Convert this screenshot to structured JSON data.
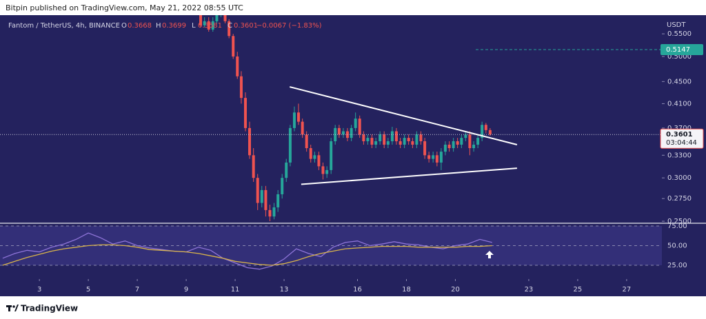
{
  "header": "Bitpin published on TradingView.com, May 21, 2022 08:55 UTC",
  "footer": "TradingView",
  "chart_data": [
    {
      "type": "candlestick",
      "title": "Fantom / TetherUS, 4h, BINANCE",
      "ohlc_labels": [
        "O",
        "H",
        "L",
        "C"
      ],
      "change_label": "−0.0067 (−1.83%)",
      "y_axis_label": "USDT",
      "countdown": "03:04:44",
      "log_scale": true,
      "grid": false,
      "up_color": "#26a69a",
      "down_color": "#ef5350",
      "x": [
        9.59,
        9.75,
        9.92,
        10.09,
        10.25,
        10.42,
        10.59,
        10.75,
        10.92,
        11.09,
        11.25,
        11.42,
        11.59,
        11.75,
        11.92,
        12.09,
        12.25,
        12.42,
        12.59,
        12.75,
        12.92,
        13.09,
        13.25,
        13.42,
        13.59,
        13.75,
        13.92,
        14.09,
        14.25,
        14.42,
        14.59,
        14.75,
        14.92,
        15.09,
        15.25,
        15.42,
        15.59,
        15.75,
        15.92,
        16.09,
        16.25,
        16.42,
        16.59,
        16.75,
        16.92,
        17.09,
        17.25,
        17.42,
        17.59,
        17.75,
        17.92,
        18.09,
        18.25,
        18.42,
        18.59,
        18.75,
        18.92,
        19.09,
        19.25,
        19.42,
        19.59,
        19.75,
        19.92,
        20.09,
        20.25,
        20.42,
        20.59,
        20.75,
        20.92,
        21.09,
        21.25,
        21.42
      ],
      "open": [
        0.6,
        0.57,
        0.58,
        0.56,
        0.58,
        0.595,
        0.6,
        0.58,
        0.545,
        0.5,
        0.46,
        0.42,
        0.37,
        0.33,
        0.3,
        0.27,
        0.285,
        0.262,
        0.255,
        0.265,
        0.28,
        0.3,
        0.32,
        0.37,
        0.395,
        0.38,
        0.36,
        0.34,
        0.325,
        0.33,
        0.315,
        0.305,
        0.31,
        0.35,
        0.37,
        0.36,
        0.365,
        0.355,
        0.37,
        0.385,
        0.36,
        0.35,
        0.355,
        0.345,
        0.35,
        0.36,
        0.345,
        0.35,
        0.365,
        0.35,
        0.345,
        0.355,
        0.35,
        0.345,
        0.36,
        0.35,
        0.33,
        0.325,
        0.33,
        0.32,
        0.335,
        0.345,
        0.34,
        0.35,
        0.345,
        0.355,
        0.36,
        0.34,
        0.345,
        0.355,
        0.375,
        0.3668
      ],
      "high": [
        0.607,
        0.59,
        0.59,
        0.59,
        0.6,
        0.607,
        0.605,
        0.585,
        0.55,
        0.51,
        0.47,
        0.43,
        0.38,
        0.34,
        0.305,
        0.29,
        0.29,
        0.268,
        0.27,
        0.285,
        0.305,
        0.325,
        0.375,
        0.405,
        0.41,
        0.385,
        0.365,
        0.345,
        0.335,
        0.335,
        0.32,
        0.315,
        0.355,
        0.375,
        0.375,
        0.37,
        0.37,
        0.375,
        0.395,
        0.39,
        0.365,
        0.36,
        0.36,
        0.355,
        0.365,
        0.365,
        0.355,
        0.372,
        0.37,
        0.355,
        0.36,
        0.36,
        0.355,
        0.365,
        0.365,
        0.355,
        0.335,
        0.335,
        0.335,
        0.34,
        0.35,
        0.35,
        0.355,
        0.355,
        0.36,
        0.365,
        0.365,
        0.35,
        0.36,
        0.38,
        0.378,
        0.3699
      ],
      "low": [
        0.565,
        0.565,
        0.555,
        0.555,
        0.575,
        0.59,
        0.575,
        0.54,
        0.495,
        0.455,
        0.41,
        0.365,
        0.325,
        0.295,
        0.262,
        0.265,
        0.255,
        0.25,
        0.252,
        0.26,
        0.275,
        0.295,
        0.315,
        0.365,
        0.375,
        0.355,
        0.335,
        0.32,
        0.32,
        0.31,
        0.298,
        0.3,
        0.305,
        0.345,
        0.355,
        0.355,
        0.35,
        0.35,
        0.365,
        0.355,
        0.345,
        0.345,
        0.34,
        0.34,
        0.345,
        0.34,
        0.34,
        0.345,
        0.345,
        0.34,
        0.34,
        0.345,
        0.34,
        0.34,
        0.345,
        0.325,
        0.32,
        0.32,
        0.315,
        0.31,
        0.33,
        0.335,
        0.335,
        0.34,
        0.34,
        0.35,
        0.33,
        0.335,
        0.34,
        0.35,
        0.362,
        0.3581
      ],
      "close": [
        0.57,
        0.58,
        0.56,
        0.58,
        0.595,
        0.6,
        0.58,
        0.545,
        0.5,
        0.46,
        0.42,
        0.37,
        0.33,
        0.3,
        0.27,
        0.285,
        0.262,
        0.255,
        0.265,
        0.28,
        0.3,
        0.32,
        0.37,
        0.395,
        0.38,
        0.36,
        0.34,
        0.325,
        0.33,
        0.315,
        0.305,
        0.31,
        0.35,
        0.37,
        0.36,
        0.365,
        0.355,
        0.37,
        0.385,
        0.36,
        0.35,
        0.355,
        0.345,
        0.35,
        0.36,
        0.345,
        0.35,
        0.365,
        0.35,
        0.345,
        0.355,
        0.35,
        0.345,
        0.36,
        0.35,
        0.33,
        0.325,
        0.33,
        0.32,
        0.335,
        0.345,
        0.34,
        0.35,
        0.345,
        0.355,
        0.36,
        0.34,
        0.345,
        0.355,
        0.375,
        0.3668,
        0.3601
      ],
      "xlim": [
        1.39,
        28.44
      ],
      "xticks": [
        3,
        5,
        7,
        9,
        11,
        13,
        16,
        18,
        20,
        23,
        25,
        27
      ],
      "ylim": [
        0.2486,
        0.595
      ],
      "yticks": [
        {
          "value": 0.25,
          "label": "0.2500"
        },
        {
          "value": 0.275,
          "label": "0.2750"
        },
        {
          "value": 0.3,
          "label": "0.3000"
        },
        {
          "value": 0.33,
          "label": "0.3300"
        },
        {
          "value": 0.37,
          "label": "0.3700"
        },
        {
          "value": 0.41,
          "label": "0.4100"
        },
        {
          "value": 0.45,
          "label": "0.4500"
        },
        {
          "value": 0.5,
          "label": "0.5000"
        },
        {
          "value": 0.55,
          "label": "0.5500"
        }
      ],
      "price_line": {
        "value": 0.5147,
        "color": "#26a69a"
      },
      "trendline_color": "#ffffff",
      "trendlines": [
        {
          "x": [
            13.23,
            22.52
          ],
          "y": [
            0.44,
            0.345
          ]
        },
        {
          "x": [
            13.7,
            22.52
          ],
          "y": [
            0.292,
            0.3125
          ]
        }
      ]
    },
    {
      "type": "line",
      "x": [
        1.5,
        2,
        2.5,
        3,
        3.5,
        4,
        4.5,
        5,
        5.5,
        6,
        6.5,
        7,
        7.5,
        8,
        8.5,
        9,
        9.5,
        10,
        10.5,
        11,
        11.5,
        12,
        12.5,
        13,
        13.5,
        14,
        14.5,
        15,
        15.5,
        16,
        16.5,
        17,
        17.5,
        18,
        18.5,
        19,
        19.5,
        20,
        20.5,
        21,
        21.5
      ],
      "series": [
        {
          "color": "#8e74d8",
          "values": [
            34,
            40,
            44,
            42,
            48,
            52,
            58,
            66,
            60,
            52,
            56,
            50,
            47,
            45,
            43,
            42,
            48,
            44,
            34,
            28,
            22,
            20,
            24,
            33,
            46,
            40,
            36,
            48,
            54,
            56,
            50,
            52,
            55,
            52,
            51,
            48,
            46,
            50,
            52,
            58,
            54
          ]
        },
        {
          "color": "#d9b44a",
          "values": [
            25,
            30,
            35,
            39,
            43,
            46,
            48,
            50,
            51,
            51,
            50,
            48,
            45,
            44,
            43,
            42,
            40,
            37,
            34,
            30,
            28,
            26,
            25,
            27,
            31,
            36,
            40,
            43,
            46,
            47,
            48,
            49,
            49,
            49,
            48,
            48,
            48,
            48,
            49,
            49,
            50
          ]
        }
      ],
      "ylim": [
        7.5,
        77.6
      ],
      "yticks": [
        {
          "value": 75,
          "label": "75.00"
        },
        {
          "value": 50,
          "label": "50.00"
        },
        {
          "value": 25,
          "label": "25.00"
        }
      ]
    }
  ]
}
